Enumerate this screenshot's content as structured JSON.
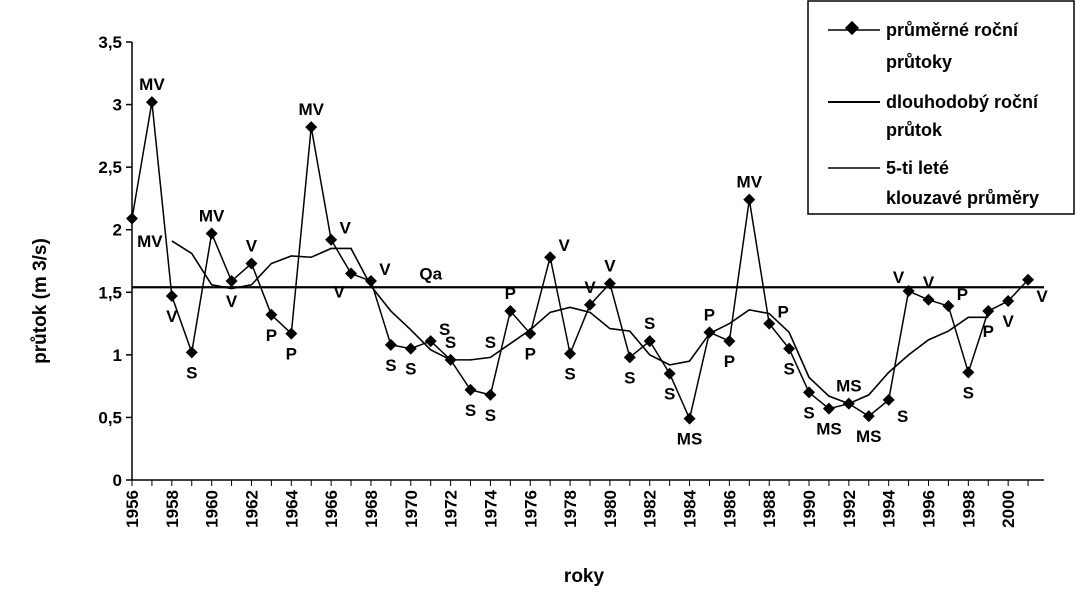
{
  "chart_data": {
    "type": "line",
    "xlabel": "roky",
    "ylabel": "průtok (m 3/s)",
    "ylim": [
      0,
      3.5
    ],
    "yticks": [
      "0",
      "0,5",
      "1",
      "1,5",
      "2",
      "2,5",
      "3",
      "3,5"
    ],
    "xticks": [
      "1956",
      "1958",
      "1960",
      "1962",
      "1964",
      "1966",
      "1968",
      "1970",
      "1972",
      "1974",
      "1976",
      "1978",
      "1980",
      "1982",
      "1984",
      "1986",
      "1988",
      "1990",
      "1992",
      "1994",
      "1996",
      "1998",
      "2000"
    ],
    "grid": false,
    "legend_position": "top-right",
    "x": [
      1956,
      1957,
      1958,
      1959,
      1960,
      1961,
      1962,
      1963,
      1964,
      1965,
      1966,
      1967,
      1968,
      1969,
      1970,
      1971,
      1972,
      1973,
      1974,
      1975,
      1976,
      1977,
      1978,
      1979,
      1980,
      1981,
      1982,
      1983,
      1984,
      1985,
      1986,
      1987,
      1988,
      1989,
      1990,
      1991,
      1992,
      1993,
      1994,
      1995,
      1996,
      1997,
      1998,
      1999,
      2000,
      2001
    ],
    "series": [
      {
        "name": "průměrné roční průtoky",
        "marker": "diamond",
        "values": [
          2.09,
          3.02,
          1.47,
          1.02,
          1.97,
          1.59,
          1.73,
          1.32,
          1.17,
          2.82,
          1.92,
          1.65,
          1.59,
          1.08,
          1.05,
          1.11,
          0.96,
          0.72,
          0.68,
          1.35,
          1.17,
          1.78,
          1.01,
          1.4,
          1.57,
          0.98,
          1.11,
          0.85,
          0.49,
          1.18,
          1.11,
          2.24,
          1.25,
          1.05,
          0.7,
          0.57,
          0.61,
          0.51,
          0.64,
          1.51,
          1.44,
          1.39,
          0.86,
          1.35,
          1.43,
          1.6
        ]
      },
      {
        "name": "dlouhodobý roční průtok",
        "constant": 1.54,
        "label": "Qa"
      },
      {
        "name": "5-ti leté klouzavé průměry",
        "x": [
          1958,
          1959,
          1960,
          1961,
          1962,
          1963,
          1964,
          1965,
          1966,
          1967,
          1968,
          1969,
          1970,
          1971,
          1972,
          1973,
          1974,
          1975,
          1976,
          1977,
          1978,
          1979,
          1980,
          1981,
          1982,
          1983,
          1984,
          1985,
          1986,
          1987,
          1988,
          1989,
          1990,
          1991,
          1992,
          1993,
          1994,
          1995,
          1996,
          1997,
          1998,
          1999
        ],
        "values": [
          1.91,
          1.81,
          1.56,
          1.53,
          1.56,
          1.73,
          1.79,
          1.78,
          1.85,
          1.85,
          1.55,
          1.35,
          1.2,
          1.04,
          0.96,
          0.96,
          0.98,
          1.09,
          1.2,
          1.34,
          1.38,
          1.34,
          1.21,
          1.19,
          1.0,
          0.92,
          0.95,
          1.17,
          1.25,
          1.36,
          1.33,
          1.18,
          0.82,
          0.67,
          0.61,
          0.68,
          0.86,
          1.0,
          1.12,
          1.19,
          1.3,
          1.3
        ]
      }
    ],
    "point_labels": [
      {
        "x": 1957,
        "y": 3.02,
        "text": "MV",
        "pos": "above"
      },
      {
        "x": 1958,
        "y": 1.47,
        "text": "V",
        "pos": "below"
      },
      {
        "x": 1958,
        "y": 1.91,
        "text": "MV",
        "pos": "left"
      },
      {
        "x": 1959,
        "y": 1.02,
        "text": "S",
        "pos": "below"
      },
      {
        "x": 1960,
        "y": 1.97,
        "text": "MV",
        "pos": "above"
      },
      {
        "x": 1961,
        "y": 1.59,
        "text": "V",
        "pos": "below"
      },
      {
        "x": 1962,
        "y": 1.73,
        "text": "V",
        "pos": "above"
      },
      {
        "x": 1963,
        "y": 1.32,
        "text": "P",
        "pos": "below"
      },
      {
        "x": 1964,
        "y": 1.17,
        "text": "P",
        "pos": "below"
      },
      {
        "x": 1965,
        "y": 2.82,
        "text": "MV",
        "pos": "above"
      },
      {
        "x": 1966,
        "y": 1.92,
        "text": "V",
        "pos": "aboveright"
      },
      {
        "x": 1967,
        "y": 1.65,
        "text": "V",
        "pos": "belowleft"
      },
      {
        "x": 1968,
        "y": 1.59,
        "text": "V",
        "pos": "aboveright"
      },
      {
        "x": 1969,
        "y": 1.08,
        "text": "S",
        "pos": "below"
      },
      {
        "x": 1970,
        "y": 1.05,
        "text": "S",
        "pos": "below"
      },
      {
        "x": 1971,
        "y": 1.11,
        "text": "S",
        "pos": "aboveright"
      },
      {
        "x": 1972,
        "y": 0.96,
        "text": "S",
        "pos": "above"
      },
      {
        "x": 1973,
        "y": 0.72,
        "text": "S",
        "pos": "below"
      },
      {
        "x": 1974,
        "y": 0.68,
        "text": "S",
        "pos": "below"
      },
      {
        "x": 1974,
        "y": 0.96,
        "text": "S",
        "pos": "above"
      },
      {
        "x": 1975,
        "y": 1.35,
        "text": "P",
        "pos": "above"
      },
      {
        "x": 1976,
        "y": 1.17,
        "text": "P",
        "pos": "below"
      },
      {
        "x": 1977,
        "y": 1.78,
        "text": "V",
        "pos": "aboveright"
      },
      {
        "x": 1978,
        "y": 1.01,
        "text": "S",
        "pos": "below"
      },
      {
        "x": 1979,
        "y": 1.4,
        "text": "V",
        "pos": "above"
      },
      {
        "x": 1980,
        "y": 1.57,
        "text": "V",
        "pos": "above"
      },
      {
        "x": 1981,
        "y": 0.98,
        "text": "S",
        "pos": "below"
      },
      {
        "x": 1982,
        "y": 1.11,
        "text": "S",
        "pos": "above"
      },
      {
        "x": 1983,
        "y": 0.85,
        "text": "S",
        "pos": "below"
      },
      {
        "x": 1984,
        "y": 0.49,
        "text": "MS",
        "pos": "below"
      },
      {
        "x": 1985,
        "y": 1.18,
        "text": "P",
        "pos": "above"
      },
      {
        "x": 1986,
        "y": 1.11,
        "text": "P",
        "pos": "below"
      },
      {
        "x": 1987,
        "y": 2.24,
        "text": "MV",
        "pos": "above"
      },
      {
        "x": 1988,
        "y": 1.25,
        "text": "P",
        "pos": "aboveright"
      },
      {
        "x": 1989,
        "y": 1.05,
        "text": "S",
        "pos": "below"
      },
      {
        "x": 1990,
        "y": 0.7,
        "text": "S",
        "pos": "below"
      },
      {
        "x": 1991,
        "y": 0.57,
        "text": "MS",
        "pos": "below"
      },
      {
        "x": 1992,
        "y": 0.61,
        "text": "MS",
        "pos": "above"
      },
      {
        "x": 1993,
        "y": 0.51,
        "text": "MS",
        "pos": "below"
      },
      {
        "x": 1994,
        "y": 0.64,
        "text": "S",
        "pos": "belowright"
      },
      {
        "x": 1995,
        "y": 1.51,
        "text": "V",
        "pos": "aboveleft"
      },
      {
        "x": 1996,
        "y": 1.44,
        "text": "V",
        "pos": "above"
      },
      {
        "x": 1997,
        "y": 1.39,
        "text": "P",
        "pos": "aboveright"
      },
      {
        "x": 1998,
        "y": 0.86,
        "text": "S",
        "pos": "below"
      },
      {
        "x": 1999,
        "y": 1.35,
        "text": "P",
        "pos": "below"
      },
      {
        "x": 2000,
        "y": 1.43,
        "text": "V",
        "pos": "below"
      },
      {
        "x": 2001,
        "y": 1.6,
        "text": "V",
        "pos": "belowright"
      }
    ]
  }
}
